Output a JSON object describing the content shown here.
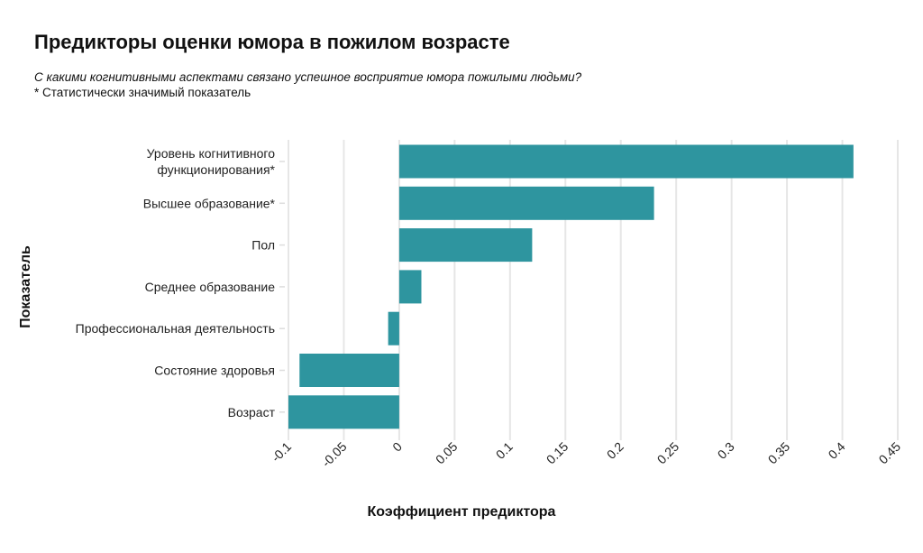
{
  "chart_data": {
    "type": "bar",
    "orientation": "horizontal",
    "title": "Предикторы оценки юмора в пожилом возрасте",
    "subtitle": "С какими когнитивными аспектами связано успешное восприятие юмора пожилыми людьми?",
    "note": "* Статистически значимый показатель",
    "xlabel": "Коэффициент предиктора",
    "ylabel": "Показатель",
    "categories": [
      [
        "Уровень когнитивного",
        "функционирования*"
      ],
      [
        "Высшее образование*"
      ],
      [
        "Пол"
      ],
      [
        "Среднее образование"
      ],
      [
        "Профессиональная деятельность"
      ],
      [
        "Состояние здоровья"
      ],
      [
        "Возраст"
      ]
    ],
    "values": [
      0.41,
      0.23,
      0.12,
      0.02,
      -0.01,
      -0.09,
      -0.1
    ],
    "xlim": [
      -0.1,
      0.45
    ],
    "xticks": [
      -0.1,
      -0.05,
      0,
      0.05,
      0.1,
      0.15,
      0.2,
      0.25,
      0.3,
      0.35,
      0.4,
      0.45
    ],
    "xtick_labels": [
      "-0.1",
      "-0.05",
      "0",
      "0.05",
      "0.1",
      "0.15",
      "0.2",
      "0.25",
      "0.3",
      "0.35",
      "0.4",
      "0.45"
    ],
    "grid": true,
    "bar_color": "#2e959f"
  }
}
